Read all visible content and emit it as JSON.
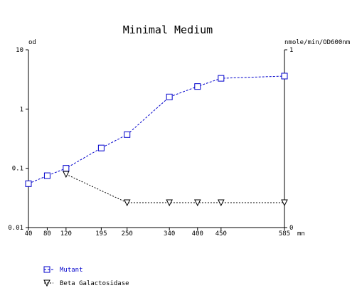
{
  "chart_data": {
    "type": "line",
    "title": "Minimal Medium",
    "xlabel": "mn",
    "ylabel": "od",
    "y2label": "nmole/min/OD600nm",
    "x_ticks": [
      40,
      80,
      120,
      195,
      250,
      340,
      400,
      450,
      585
    ],
    "x_tick_labels": [
      "40",
      "80",
      "120",
      "195",
      "250",
      "340",
      "400",
      "450",
      "585"
    ],
    "y_scale": "log",
    "ylim": [
      0.01,
      10
    ],
    "y_tick_labels": [
      "10",
      "1",
      "0.1",
      "0.01"
    ],
    "y2lim": [
      0,
      1
    ],
    "y2_tick_labels": [
      "1",
      "0"
    ],
    "legend_position": "bottom-left",
    "grid": false,
    "series": [
      {
        "name": "Mutant",
        "axis": "left",
        "color": "#0000cc",
        "marker": "square",
        "x": [
          40,
          80,
          120,
          195,
          250,
          340,
          400,
          450,
          585
        ],
        "y": [
          0.055,
          0.075,
          0.1,
          0.22,
          0.37,
          1.6,
          2.4,
          3.3,
          3.6
        ]
      },
      {
        "name": "Beta Galactosidase",
        "axis": "right",
        "color": "#000000",
        "marker": "triangle-down",
        "x": [
          120,
          250,
          340,
          400,
          450,
          585
        ],
        "y": [
          0.3,
          0.14,
          0.14,
          0.14,
          0.14,
          0.14
        ]
      }
    ]
  }
}
